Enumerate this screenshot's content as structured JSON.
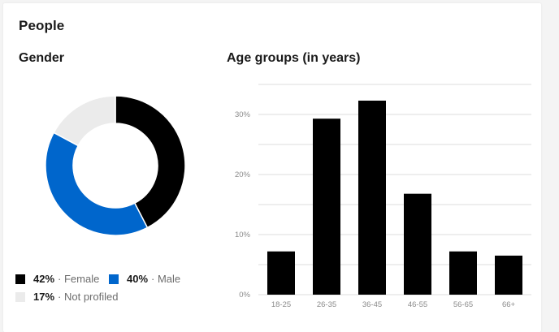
{
  "card": {
    "title": "People"
  },
  "colors": {
    "female": "#000000",
    "male": "#0066cc",
    "not_profiled": "#ebebeb",
    "bar": "#000000",
    "grid": "#dddddd"
  },
  "legend": [
    {
      "pct": "42%",
      "label": "· Female",
      "color": "#000000"
    },
    {
      "pct": "40%",
      "label": "· Male",
      "color": "#0066cc"
    },
    {
      "pct": "17%",
      "label": "· Not profiled",
      "color": "#ebebeb"
    }
  ],
  "chart_data": [
    {
      "type": "pie",
      "title": "Gender",
      "categories": [
        "Female",
        "Male",
        "Not profiled"
      ],
      "values": [
        42,
        40,
        17
      ],
      "donut": true,
      "legend_position": "bottom"
    },
    {
      "type": "bar",
      "title": "Age groups (in years)",
      "categories": [
        "18-25",
        "26-35",
        "36-45",
        "46-55",
        "56-65",
        "66+"
      ],
      "values": [
        7.2,
        29.3,
        32.3,
        16.8,
        7.2,
        6.5
      ],
      "yticks": [
        "0%",
        "10%",
        "20%",
        "30%"
      ],
      "ylim": [
        0,
        35
      ],
      "grid": true
    }
  ]
}
